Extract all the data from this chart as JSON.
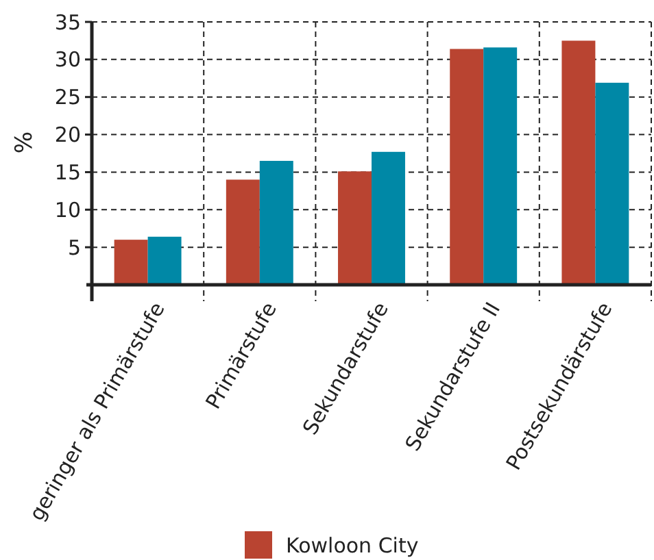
{
  "chart_data": {
    "type": "bar",
    "ylabel": "%",
    "categories": [
      "geringer als Primärstufe",
      "Primärstufe",
      "Sekundarstufe",
      "Sekundarstufe II",
      "Postsekundärstufe"
    ],
    "series": [
      {
        "name": "Kowloon City",
        "color": "#b94431",
        "values": [
          6.0,
          14.0,
          15.1,
          31.4,
          32.5
        ]
      },
      {
        "color": "#0088a6",
        "values": [
          6.4,
          16.5,
          17.7,
          31.6,
          26.9
        ]
      }
    ],
    "ylim": [
      0,
      35
    ],
    "yticks": [
      5,
      10,
      15,
      20,
      25,
      30,
      35
    ],
    "grid": true,
    "legend": "bottom"
  }
}
